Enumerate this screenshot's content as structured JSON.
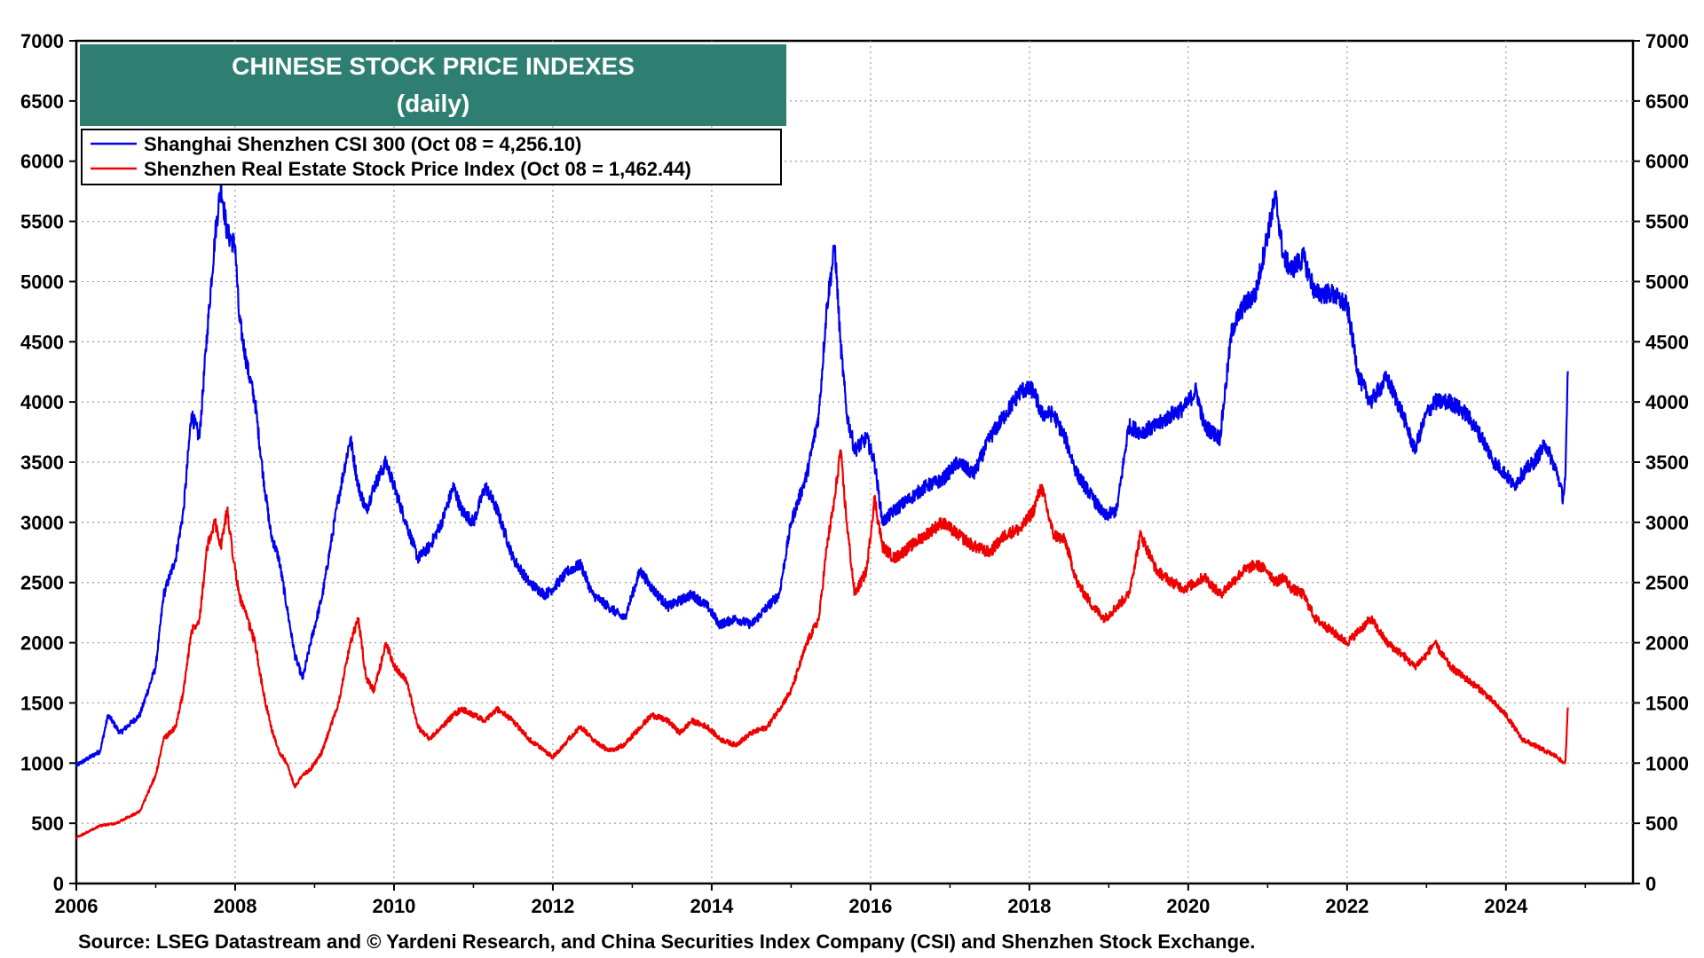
{
  "chart_data": {
    "type": "line",
    "title": "CHINESE STOCK PRICE INDEXES",
    "subtitle": "(daily)",
    "xlabel": "",
    "ylabel": "",
    "xlim": [
      2006,
      2025.6
    ],
    "ylim": [
      0,
      7000
    ],
    "x_ticks": [
      "2006",
      "2008",
      "2010",
      "2012",
      "2014",
      "2016",
      "2018",
      "2020",
      "2022",
      "2024"
    ],
    "y_ticks": [
      "0",
      "500",
      "1000",
      "1500",
      "2000",
      "2500",
      "3000",
      "3500",
      "4000",
      "4500",
      "5000",
      "5500",
      "6000",
      "6500",
      "7000"
    ],
    "grid": true,
    "legend_position": "top-left",
    "source": "Source: LSEG Datastream and © Yardeni Research, and China Securities Index Company (CSI) and Shenzhen Stock Exchange.",
    "series": [
      {
        "name": "Shanghai Shenzhen CSI 300 (Oct 08 = 4,256.10)",
        "color": "#0000ee",
        "x": [
          2006.0,
          2006.3,
          2006.4,
          2006.55,
          2006.8,
          2007.0,
          2007.1,
          2007.25,
          2007.35,
          2007.45,
          2007.55,
          2007.65,
          2007.75,
          2007.82,
          2007.9,
          2008.0,
          2008.05,
          2008.15,
          2008.25,
          2008.35,
          2008.45,
          2008.55,
          2008.65,
          2008.75,
          2008.85,
          2008.95,
          2009.1,
          2009.3,
          2009.45,
          2009.55,
          2009.65,
          2009.75,
          2009.9,
          2010.0,
          2010.15,
          2010.3,
          2010.45,
          2010.6,
          2010.75,
          2010.85,
          2011.0,
          2011.15,
          2011.3,
          2011.5,
          2011.7,
          2011.9,
          2012.0,
          2012.2,
          2012.35,
          2012.5,
          2012.7,
          2012.9,
          2013.1,
          2013.25,
          2013.45,
          2013.6,
          2013.75,
          2013.95,
          2014.1,
          2014.3,
          2014.5,
          2014.7,
          2014.85,
          2015.0,
          2015.2,
          2015.35,
          2015.45,
          2015.55,
          2015.62,
          2015.7,
          2015.8,
          2015.95,
          2016.05,
          2016.15,
          2016.3,
          2016.5,
          2016.7,
          2016.9,
          2017.1,
          2017.3,
          2017.5,
          2017.7,
          2017.9,
          2018.05,
          2018.15,
          2018.3,
          2018.45,
          2018.6,
          2018.8,
          2018.95,
          2019.1,
          2019.25,
          2019.4,
          2019.6,
          2019.8,
          2019.95,
          2020.1,
          2020.2,
          2020.4,
          2020.55,
          2020.7,
          2020.85,
          2021.0,
          2021.1,
          2021.2,
          2021.3,
          2021.45,
          2021.6,
          2021.8,
          2022.0,
          2022.15,
          2022.3,
          2022.5,
          2022.7,
          2022.85,
          2023.0,
          2023.1,
          2023.3,
          2023.5,
          2023.7,
          2023.85,
          2024.0,
          2024.1,
          2024.2,
          2024.35,
          2024.5,
          2024.65,
          2024.72,
          2024.75,
          2024.78
        ],
        "values": [
          980,
          1100,
          1400,
          1250,
          1400,
          1800,
          2400,
          2700,
          3100,
          3900,
          3700,
          4600,
          5400,
          5800,
          5400,
          5300,
          4700,
          4300,
          4000,
          3400,
          2900,
          2700,
          2300,
          1900,
          1700,
          2000,
          2400,
          3200,
          3700,
          3300,
          3100,
          3300,
          3500,
          3300,
          3000,
          2700,
          2800,
          3000,
          3300,
          3100,
          3000,
          3300,
          3100,
          2700,
          2500,
          2400,
          2450,
          2600,
          2650,
          2400,
          2300,
          2200,
          2600,
          2450,
          2300,
          2350,
          2400,
          2300,
          2150,
          2200,
          2150,
          2300,
          2400,
          3000,
          3400,
          3900,
          4800,
          5300,
          4500,
          3900,
          3600,
          3700,
          3500,
          3000,
          3100,
          3200,
          3300,
          3350,
          3500,
          3400,
          3700,
          3900,
          4100,
          4100,
          3900,
          3900,
          3700,
          3400,
          3200,
          3050,
          3100,
          3800,
          3750,
          3800,
          3900,
          3950,
          4100,
          3800,
          3700,
          4600,
          4800,
          4900,
          5400,
          5700,
          5200,
          5100,
          5200,
          4900,
          4900,
          4800,
          4200,
          4000,
          4200,
          3900,
          3600,
          3900,
          4000,
          4000,
          3900,
          3700,
          3500,
          3400,
          3300,
          3400,
          3500,
          3650,
          3400,
          3200,
          3400,
          4256
        ]
      },
      {
        "name": "Shenzhen Real Estate Stock Price Index (Oct 08 = 1,462.44)",
        "color": "#ee0000",
        "x": [
          2006.0,
          2006.3,
          2006.5,
          2006.8,
          2007.0,
          2007.1,
          2007.25,
          2007.35,
          2007.45,
          2007.55,
          2007.65,
          2007.75,
          2007.82,
          2007.9,
          2008.0,
          2008.05,
          2008.15,
          2008.25,
          2008.35,
          2008.45,
          2008.55,
          2008.65,
          2008.75,
          2008.85,
          2008.95,
          2009.1,
          2009.3,
          2009.45,
          2009.55,
          2009.65,
          2009.75,
          2009.9,
          2010.0,
          2010.15,
          2010.3,
          2010.45,
          2010.6,
          2010.75,
          2010.85,
          2011.0,
          2011.15,
          2011.3,
          2011.5,
          2011.7,
          2011.9,
          2012.0,
          2012.2,
          2012.35,
          2012.5,
          2012.7,
          2012.9,
          2013.1,
          2013.25,
          2013.45,
          2013.6,
          2013.75,
          2013.95,
          2014.1,
          2014.3,
          2014.5,
          2014.7,
          2014.85,
          2015.0,
          2015.2,
          2015.35,
          2015.45,
          2015.55,
          2015.62,
          2015.7,
          2015.8,
          2015.95,
          2016.05,
          2016.15,
          2016.3,
          2016.5,
          2016.7,
          2016.9,
          2017.1,
          2017.3,
          2017.5,
          2017.7,
          2017.9,
          2018.05,
          2018.15,
          2018.3,
          2018.45,
          2018.6,
          2018.8,
          2018.95,
          2019.1,
          2019.25,
          2019.4,
          2019.6,
          2019.8,
          2019.95,
          2020.1,
          2020.2,
          2020.4,
          2020.55,
          2020.7,
          2020.85,
          2021.0,
          2021.1,
          2021.2,
          2021.3,
          2021.45,
          2021.6,
          2021.8,
          2022.0,
          2022.15,
          2022.3,
          2022.5,
          2022.7,
          2022.85,
          2023.0,
          2023.1,
          2023.3,
          2023.5,
          2023.7,
          2023.85,
          2024.0,
          2024.1,
          2024.2,
          2024.35,
          2024.5,
          2024.65,
          2024.72,
          2024.75,
          2024.78
        ],
        "values": [
          380,
          480,
          500,
          600,
          900,
          1200,
          1300,
          1600,
          2100,
          2200,
          2800,
          3000,
          2800,
          3100,
          2600,
          2400,
          2200,
          2000,
          1600,
          1300,
          1100,
          1000,
          800,
          900,
          950,
          1100,
          1500,
          2000,
          2200,
          1700,
          1600,
          2000,
          1800,
          1700,
          1300,
          1200,
          1300,
          1400,
          1450,
          1400,
          1350,
          1450,
          1350,
          1200,
          1100,
          1050,
          1200,
          1300,
          1200,
          1100,
          1150,
          1300,
          1400,
          1350,
          1250,
          1350,
          1300,
          1200,
          1150,
          1250,
          1300,
          1450,
          1600,
          2000,
          2200,
          2800,
          3200,
          3600,
          3000,
          2400,
          2600,
          3200,
          2800,
          2700,
          2800,
          2900,
          3000,
          2900,
          2800,
          2750,
          2900,
          2950,
          3100,
          3300,
          2900,
          2850,
          2500,
          2300,
          2200,
          2300,
          2400,
          2900,
          2600,
          2500,
          2450,
          2500,
          2550,
          2400,
          2500,
          2600,
          2650,
          2600,
          2500,
          2550,
          2450,
          2400,
          2200,
          2100,
          2000,
          2100,
          2200,
          2000,
          1900,
          1800,
          1900,
          2000,
          1800,
          1700,
          1600,
          1500,
          1400,
          1300,
          1200,
          1150,
          1100,
          1050,
          1000,
          1020,
          1462
        ]
      }
    ]
  }
}
